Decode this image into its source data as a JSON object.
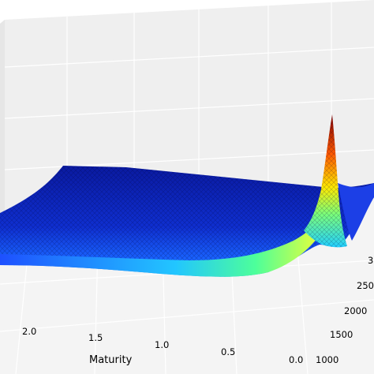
{
  "chart_data": {
    "type": "surface",
    "title": "",
    "xlabel": "Maturity",
    "ylabel": "",
    "zlabel": "",
    "grid": true,
    "colormap": "jet",
    "maturity_ticks": [
      "2.0",
      "1.5",
      "1.0",
      "0.5",
      "0.0"
    ],
    "strike_ticks": [
      "1000",
      "1500",
      "2000",
      "250",
      "3"
    ],
    "maturity_range": [
      0.0,
      2.3
    ],
    "strike_range": [
      850,
      3050
    ],
    "surface": {
      "description_of_shape": "flat blue plateau at longer maturities; sharp ridge near maturity 0 around strike 2700 peaking in dark red",
      "plateau_value": 0.08,
      "peak_value": 1.0,
      "peak_maturity": 0.0,
      "peak_strike": 2700
    },
    "colors": {
      "pane": "#f2f2f2",
      "grid": "#ffffff",
      "low": "#00007f",
      "mid": "#00ffff",
      "high": "#7f0000"
    }
  }
}
